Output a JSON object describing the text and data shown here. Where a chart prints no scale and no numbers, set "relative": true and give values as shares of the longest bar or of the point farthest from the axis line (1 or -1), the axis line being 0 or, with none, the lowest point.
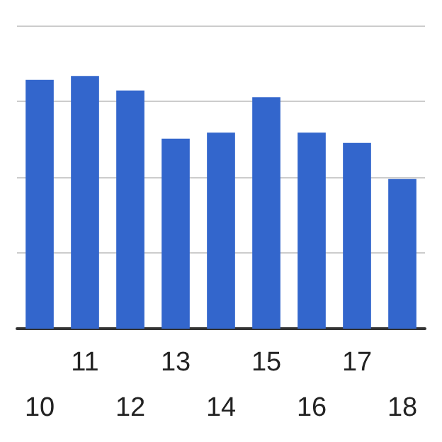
{
  "chart_data": {
    "type": "bar",
    "relative": true,
    "grid": "y",
    "color": "#3366cc",
    "categories": [
      "10",
      "11",
      "12",
      "13",
      "14",
      "15",
      "16",
      "17",
      "18"
    ],
    "values": [
      0.985,
      1,
      0.943,
      0.752,
      0.776,
      0.916,
      0.776,
      0.735,
      0.592
    ]
  }
}
